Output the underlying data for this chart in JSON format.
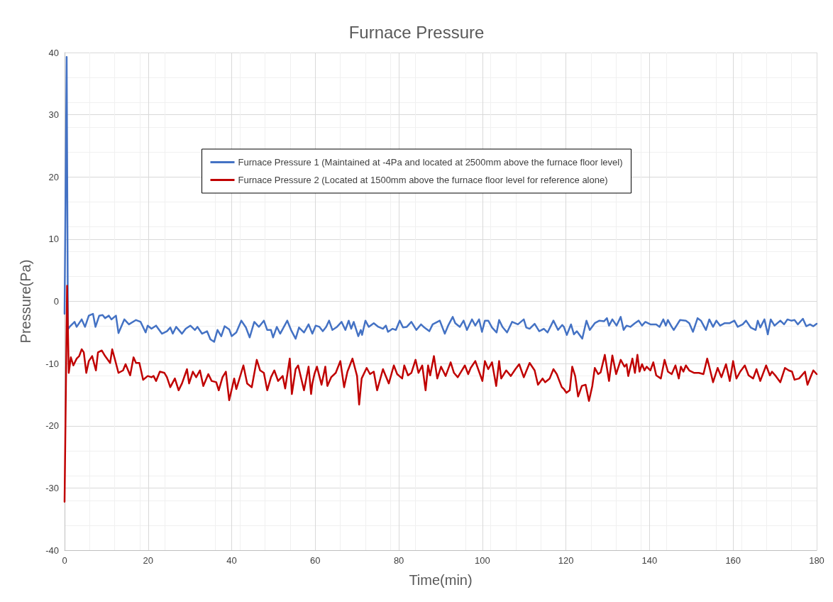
{
  "chart_data": {
    "type": "line",
    "title": "Furnace Pressure",
    "xlabel": "Time(min)",
    "ylabel": "Pressure(Pa)",
    "xlim": [
      0,
      180
    ],
    "xticks": [
      0,
      20,
      40,
      60,
      80,
      100,
      120,
      140,
      160,
      180
    ],
    "ylim": [
      -40,
      40
    ],
    "yticks": [
      -40,
      -30,
      -20,
      -10,
      0,
      10,
      20,
      30,
      40
    ],
    "grid": true,
    "legend": "top",
    "marker": "none",
    "line_style": "solid",
    "series": [
      {
        "name": "Furnace Pressure 1 (Maintained at -4Pa and located at 2500mm above the furnace floor level)",
        "color": "#4472c4",
        "x": [
          0,
          0.5,
          0.8,
          1.2,
          1.8,
          2.4,
          2.9,
          4.1,
          4.9,
          5.8,
          6.8,
          7.4,
          8.3,
          9.1,
          9.7,
          10.6,
          11.2,
          12.3,
          12.9,
          14.3,
          15.4,
          17.1,
          18.2,
          19.4,
          19.9,
          20.8,
          21.9,
          23.3,
          24.5,
          25.3,
          25.9,
          26.7,
          28.1,
          29.0,
          30.1,
          31.2,
          31.8,
          32.9,
          34.1,
          34.9,
          35.8,
          36.6,
          37.5,
          38.3,
          39.4,
          40.0,
          41.1,
          42.3,
          43.4,
          44.3,
          45.4,
          46.5,
          47.7,
          48.5,
          49.4,
          49.9,
          50.8,
          51.6,
          53.3,
          54.2,
          55.3,
          56.1,
          57.3,
          58.4,
          59.3,
          60.1,
          61.0,
          61.8,
          62.6,
          63.3,
          64.1,
          65.2,
          66.3,
          67.2,
          68.0,
          68.6,
          69.2,
          70.3,
          70.9,
          71.2,
          72.0,
          72.8,
          74.0,
          75.1,
          76.2,
          76.9,
          77.4,
          78.5,
          79.3,
          80.2,
          81.0,
          81.9,
          83.0,
          84.2,
          85.3,
          86.1,
          87.3,
          88.1,
          89.8,
          91.0,
          91.8,
          92.9,
          93.5,
          94.6,
          95.5,
          96.3,
          97.5,
          98.3,
          99.2,
          99.9,
          100.6,
          101.4,
          102.3,
          103.4,
          104.0,
          104.8,
          105.9,
          107.1,
          108.5,
          109.9,
          110.5,
          111.3,
          112.5,
          113.6,
          114.7,
          115.6,
          117.0,
          118.1,
          119.1,
          119.5,
          120.2,
          121.2,
          121.9,
          122.6,
          123.9,
          124.9,
          125.7,
          126.9,
          128.0,
          129.1,
          129.8,
          130.3,
          131.1,
          132.1,
          133.1,
          133.8,
          134.5,
          135.4,
          136.5,
          137.4,
          138.2,
          139.0,
          140.2,
          141.6,
          142.4,
          143.3,
          143.9,
          144.4,
          145.3,
          145.8,
          147.3,
          148.7,
          149.5,
          150.4,
          151.5,
          152.3,
          153.5,
          154.3,
          155.2,
          156.0,
          156.9,
          158.0,
          159.2,
          160.3,
          161.1,
          162.3,
          163.1,
          164.2,
          165.4,
          165.9,
          166.5,
          167.5,
          168.3,
          169.0,
          169.9,
          171.3,
          172.2,
          173.0,
          173.9,
          174.7,
          175.5,
          176.7,
          177.5,
          178.4,
          179.2,
          180.0
        ],
        "values": [
          -2,
          39.3,
          -4.5,
          -4.1,
          -3.7,
          -3.3,
          -4.1,
          -2.9,
          -4.1,
          -2.3,
          -2.0,
          -4.1,
          -2.3,
          -2.2,
          -2.7,
          -2.3,
          -2.9,
          -2.3,
          -5.1,
          -2.9,
          -3.7,
          -3.0,
          -3.3,
          -5.0,
          -3.9,
          -4.4,
          -3.9,
          -5.2,
          -4.8,
          -4.2,
          -5.2,
          -4.1,
          -5.2,
          -4.4,
          -3.9,
          -4.6,
          -4.1,
          -5.2,
          -4.8,
          -6.1,
          -6.5,
          -4.6,
          -5.6,
          -4.0,
          -4.5,
          -5.6,
          -5.0,
          -3.1,
          -4.2,
          -5.8,
          -3.3,
          -4.1,
          -3.1,
          -4.6,
          -4.6,
          -5.8,
          -4.1,
          -5.2,
          -3.1,
          -4.6,
          -6.0,
          -4.2,
          -5.0,
          -3.7,
          -5.2,
          -3.9,
          -4.1,
          -4.8,
          -4.1,
          -3.1,
          -4.6,
          -4.1,
          -3.3,
          -4.6,
          -3.1,
          -4.4,
          -3.3,
          -5.6,
          -4.6,
          -5.4,
          -3.1,
          -4.1,
          -3.5,
          -4.1,
          -4.4,
          -3.9,
          -4.9,
          -4.4,
          -4.6,
          -3.1,
          -4.2,
          -4.1,
          -3.3,
          -4.6,
          -3.7,
          -4.2,
          -4.8,
          -3.7,
          -3.1,
          -5.2,
          -3.9,
          -2.5,
          -3.5,
          -4.1,
          -3.1,
          -4.6,
          -2.9,
          -3.9,
          -2.9,
          -4.9,
          -3.1,
          -3.1,
          -4.2,
          -5.0,
          -3.0,
          -4.1,
          -5.0,
          -3.3,
          -3.7,
          -2.9,
          -4.2,
          -4.4,
          -3.6,
          -4.8,
          -4.4,
          -5.0,
          -3.1,
          -4.6,
          -3.8,
          -4.1,
          -5.4,
          -3.7,
          -5.3,
          -4.8,
          -6.0,
          -3.1,
          -4.6,
          -3.5,
          -3.1,
          -3.2,
          -2.7,
          -3.9,
          -2.9,
          -3.9,
          -2.5,
          -4.6,
          -3.9,
          -4.1,
          -3.5,
          -3.1,
          -3.9,
          -3.3,
          -3.7,
          -3.7,
          -4.1,
          -2.9,
          -3.9,
          -3.0,
          -4.1,
          -4.6,
          -3.0,
          -3.1,
          -3.5,
          -4.9,
          -2.7,
          -3.1,
          -4.6,
          -2.9,
          -4.1,
          -3.1,
          -3.9,
          -3.5,
          -3.5,
          -3.1,
          -4.1,
          -3.7,
          -3.1,
          -4.2,
          -4.6,
          -3.1,
          -4.2,
          -2.9,
          -5.3,
          -2.9,
          -3.9,
          -3.1,
          -3.7,
          -2.9,
          -3.1,
          -3.0,
          -3.7,
          -2.8,
          -4.0,
          -3.7,
          -4.0,
          -3.6
        ]
      },
      {
        "name": "Furnace Pressure 2 (Located at 1500mm above the furnace floor level for reference alone)",
        "color": "#c00000",
        "x": [
          0,
          0.6,
          1.0,
          1.5,
          2.1,
          2.9,
          3.5,
          4.1,
          4.6,
          5.2,
          5.8,
          6.6,
          7.5,
          8.0,
          8.9,
          9.7,
          10.9,
          11.4,
          12.0,
          12.9,
          14.0,
          14.6,
          15.7,
          16.5,
          17.1,
          17.9,
          18.8,
          19.9,
          20.8,
          21.3,
          21.9,
          22.8,
          23.9,
          24.5,
          25.3,
          26.4,
          27.3,
          28.1,
          29.3,
          29.8,
          30.7,
          31.5,
          32.4,
          33.2,
          34.4,
          35.2,
          36.3,
          36.9,
          37.8,
          38.6,
          39.4,
          40.6,
          41.1,
          42.8,
          43.7,
          44.8,
          46.0,
          46.8,
          47.7,
          48.5,
          49.4,
          50.2,
          51.1,
          52.2,
          52.8,
          53.9,
          54.4,
          55.3,
          55.9,
          57.3,
          58.4,
          59.0,
          59.3,
          59.8,
          60.4,
          61.5,
          62.4,
          62.9,
          63.8,
          64.9,
          66.0,
          66.9,
          67.7,
          68.9,
          70.0,
          70.5,
          71.1,
          72.3,
          73.1,
          74.0,
          74.8,
          76.2,
          77.6,
          78.8,
          79.6,
          80.8,
          81.3,
          82.2,
          83.0,
          84.0,
          84.7,
          85.6,
          86.4,
          87.0,
          87.5,
          88.4,
          89.2,
          90.1,
          91.2,
          92.4,
          93.2,
          94.1,
          94.9,
          95.8,
          96.6,
          97.2,
          98.3,
          99.2,
          100.0,
          100.6,
          101.4,
          102.3,
          103.3,
          104.0,
          104.5,
          105.7,
          106.8,
          107.9,
          108.8,
          109.9,
          111.3,
          112.5,
          113.3,
          114.4,
          115.0,
          116.1,
          117.0,
          117.8,
          119.0,
          119.5,
          120.1,
          120.9,
          121.5,
          122.2,
          122.9,
          123.8,
          124.7,
          125.5,
          126.3,
          126.9,
          127.7,
          128.3,
          129.3,
          130.3,
          131.1,
          132.0,
          133.1,
          134.0,
          134.5,
          134.9,
          135.9,
          136.5,
          137.1,
          137.6,
          138.2,
          138.8,
          139.3,
          140.2,
          140.9,
          141.6,
          142.7,
          143.6,
          144.4,
          145.3,
          146.2,
          147.0,
          147.5,
          148.1,
          148.7,
          149.5,
          150.7,
          151.8,
          152.9,
          153.8,
          154.3,
          155.2,
          156.3,
          157.2,
          158.3,
          159.2,
          160.0,
          160.8,
          161.7,
          162.8,
          163.7,
          164.8,
          165.6,
          166.5,
          167.9,
          168.8,
          169.3,
          170.2,
          171.3,
          172.4,
          173.3,
          174.1,
          174.7,
          175.8,
          177.2,
          177.8,
          178.7,
          179.2,
          180.0
        ],
        "values": [
          -32.2,
          2.5,
          -11.5,
          -9.0,
          -10.3,
          -9.2,
          -8.8,
          -7.7,
          -8.2,
          -11.5,
          -9.6,
          -8.8,
          -11.1,
          -8.2,
          -7.9,
          -8.8,
          -9.9,
          -7.7,
          -9.2,
          -11.5,
          -11.1,
          -10.1,
          -11.9,
          -9.0,
          -9.9,
          -9.9,
          -12.6,
          -12.0,
          -12.2,
          -12.0,
          -12.8,
          -11.3,
          -11.5,
          -12.2,
          -13.8,
          -12.4,
          -14.3,
          -13.2,
          -10.9,
          -13.2,
          -11.3,
          -12.2,
          -11.1,
          -13.6,
          -11.7,
          -12.8,
          -13.0,
          -14.3,
          -12.2,
          -11.3,
          -15.9,
          -12.4,
          -14.1,
          -10.3,
          -13.2,
          -13.8,
          -9.4,
          -11.1,
          -11.5,
          -14.3,
          -12.2,
          -11.1,
          -12.8,
          -12.0,
          -14.0,
          -9.2,
          -14.9,
          -10.9,
          -10.3,
          -14.3,
          -10.5,
          -14.9,
          -13.2,
          -11.7,
          -10.5,
          -13.4,
          -10.5,
          -13.6,
          -12.2,
          -11.5,
          -9.6,
          -13.8,
          -11.3,
          -9.2,
          -12.0,
          -16.6,
          -12.4,
          -10.7,
          -11.7,
          -11.3,
          -14.3,
          -10.9,
          -13.2,
          -10.3,
          -11.7,
          -12.4,
          -10.3,
          -11.9,
          -11.5,
          -9.4,
          -11.5,
          -10.3,
          -14.3,
          -10.3,
          -11.9,
          -8.8,
          -12.4,
          -10.5,
          -12.0,
          -9.8,
          -11.5,
          -12.2,
          -11.3,
          -10.3,
          -11.7,
          -10.7,
          -9.6,
          -11.3,
          -12.8,
          -9.6,
          -10.9,
          -9.8,
          -13.6,
          -9.6,
          -12.4,
          -11.1,
          -12.0,
          -10.9,
          -10.1,
          -12.2,
          -9.9,
          -11.1,
          -13.4,
          -12.4,
          -13.0,
          -12.4,
          -10.9,
          -11.7,
          -13.8,
          -14.1,
          -14.7,
          -14.3,
          -10.5,
          -12.0,
          -15.3,
          -13.6,
          -13.4,
          -16.0,
          -13.6,
          -10.7,
          -11.7,
          -11.4,
          -8.6,
          -12.8,
          -8.7,
          -11.7,
          -9.4,
          -10.5,
          -10.1,
          -12.0,
          -9.2,
          -11.5,
          -8.6,
          -11.3,
          -10.1,
          -11.1,
          -10.5,
          -11.1,
          -9.8,
          -11.9,
          -12.4,
          -9.4,
          -11.3,
          -11.7,
          -10.3,
          -12.4,
          -10.5,
          -11.3,
          -10.3,
          -11.1,
          -11.5,
          -11.5,
          -11.7,
          -9.2,
          -10.5,
          -13.0,
          -10.7,
          -12.2,
          -10.1,
          -12.8,
          -9.6,
          -12.4,
          -11.3,
          -10.3,
          -11.9,
          -12.4,
          -10.9,
          -12.8,
          -10.3,
          -11.9,
          -11.3,
          -12.0,
          -13.0,
          -10.7,
          -11.1,
          -11.3,
          -12.6,
          -12.4,
          -11.3,
          -13.4,
          -11.9,
          -11.1,
          -11.7
        ]
      }
    ]
  }
}
